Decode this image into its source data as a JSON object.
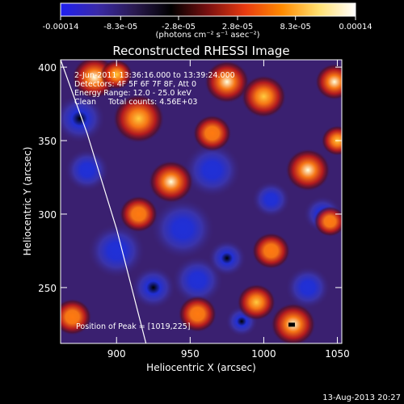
{
  "chart_data": {
    "type": "heatmap",
    "title": "Reconstructed RHESSI Image",
    "colorbar": {
      "ticks": [
        "-0.00014",
        "-8.3e-05",
        "-2.8e-05",
        "2.8e-05",
        "8.3e-05",
        "0.00014"
      ],
      "tick_values": [
        -0.00014,
        -8.3e-05,
        -2.8e-05,
        2.8e-05,
        8.3e-05,
        0.00014
      ],
      "range": [
        -0.00014,
        0.00014
      ],
      "unit_label": "(photons cm⁻² s⁻¹ asec⁻²)",
      "colormap": [
        "#1f1ff0",
        "#3a2aa8",
        "#2a1a50",
        "#000000",
        "#7a1010",
        "#e83a10",
        "#ff8a00",
        "#ffe070",
        "#ffffff"
      ]
    },
    "xlabel": "Heliocentric X (arcsec)",
    "ylabel": "Heliocentric Y (arcsec)",
    "xlim": [
      862,
      1053
    ],
    "ylim": [
      212,
      405
    ],
    "xticks": [
      900,
      950,
      1000,
      1050
    ],
    "yticks": [
      250,
      300,
      350,
      400
    ],
    "annotations": [
      "2-Jun-2011 13:36:16.000 to 13:39:24.000",
      "Detectors: 4F 5F 6F 7F 8F, Att 0",
      "Energy Range: 12.0 - 25.0 keV",
      "Clean     Total counts: 4.56E+03"
    ],
    "peak_label": "Position of Peak = [1019,225]",
    "peak": [
      1019,
      225
    ],
    "limb_curve": {
      "x": [
        862,
        880,
        900,
        920
      ],
      "y": [
        405,
        355,
        290,
        212
      ]
    },
    "blobs": [
      {
        "x": 875,
        "y": 365,
        "v": -1.0,
        "s": 8
      },
      {
        "x": 880,
        "y": 330,
        "v": -0.7,
        "s": 7
      },
      {
        "x": 925,
        "y": 250,
        "v": -0.9,
        "s": 7
      },
      {
        "x": 955,
        "y": 255,
        "v": -0.6,
        "s": 8
      },
      {
        "x": 975,
        "y": 270,
        "v": -1.0,
        "s": 6
      },
      {
        "x": 985,
        "y": 227,
        "v": -1.0,
        "s": 5
      },
      {
        "x": 1005,
        "y": 310,
        "v": -0.8,
        "s": 6
      },
      {
        "x": 1030,
        "y": 250,
        "v": -0.7,
        "s": 7
      },
      {
        "x": 945,
        "y": 290,
        "v": -0.5,
        "s": 10
      },
      {
        "x": 1040,
        "y": 300,
        "v": -0.5,
        "s": 6
      },
      {
        "x": 900,
        "y": 275,
        "v": -0.4,
        "s": 9
      },
      {
        "x": 965,
        "y": 330,
        "v": -0.4,
        "s": 9
      },
      {
        "x": 885,
        "y": 393,
        "v": 0.9,
        "s": 7
      },
      {
        "x": 915,
        "y": 365,
        "v": 0.8,
        "s": 8
      },
      {
        "x": 937,
        "y": 322,
        "v": 1.0,
        "s": 7
      },
      {
        "x": 975,
        "y": 390,
        "v": 0.9,
        "s": 7
      },
      {
        "x": 1000,
        "y": 380,
        "v": 0.7,
        "s": 7
      },
      {
        "x": 1048,
        "y": 390,
        "v": 0.9,
        "s": 6
      },
      {
        "x": 1050,
        "y": 350,
        "v": 0.8,
        "s": 5
      },
      {
        "x": 1030,
        "y": 330,
        "v": 0.9,
        "s": 7
      },
      {
        "x": 1045,
        "y": 295,
        "v": 0.6,
        "s": 5
      },
      {
        "x": 1020,
        "y": 225,
        "v": 1.0,
        "s": 7
      },
      {
        "x": 995,
        "y": 240,
        "v": 0.8,
        "s": 6
      },
      {
        "x": 955,
        "y": 232,
        "v": 0.6,
        "s": 6
      },
      {
        "x": 915,
        "y": 300,
        "v": 0.5,
        "s": 6
      },
      {
        "x": 965,
        "y": 355,
        "v": 0.5,
        "s": 6
      },
      {
        "x": 900,
        "y": 395,
        "v": 0.7,
        "s": 5
      },
      {
        "x": 1005,
        "y": 275,
        "v": 0.5,
        "s": 6
      },
      {
        "x": 870,
        "y": 230,
        "v": 0.4,
        "s": 6
      }
    ]
  },
  "footer": {
    "date": "13-Aug-2013 20:27"
  }
}
